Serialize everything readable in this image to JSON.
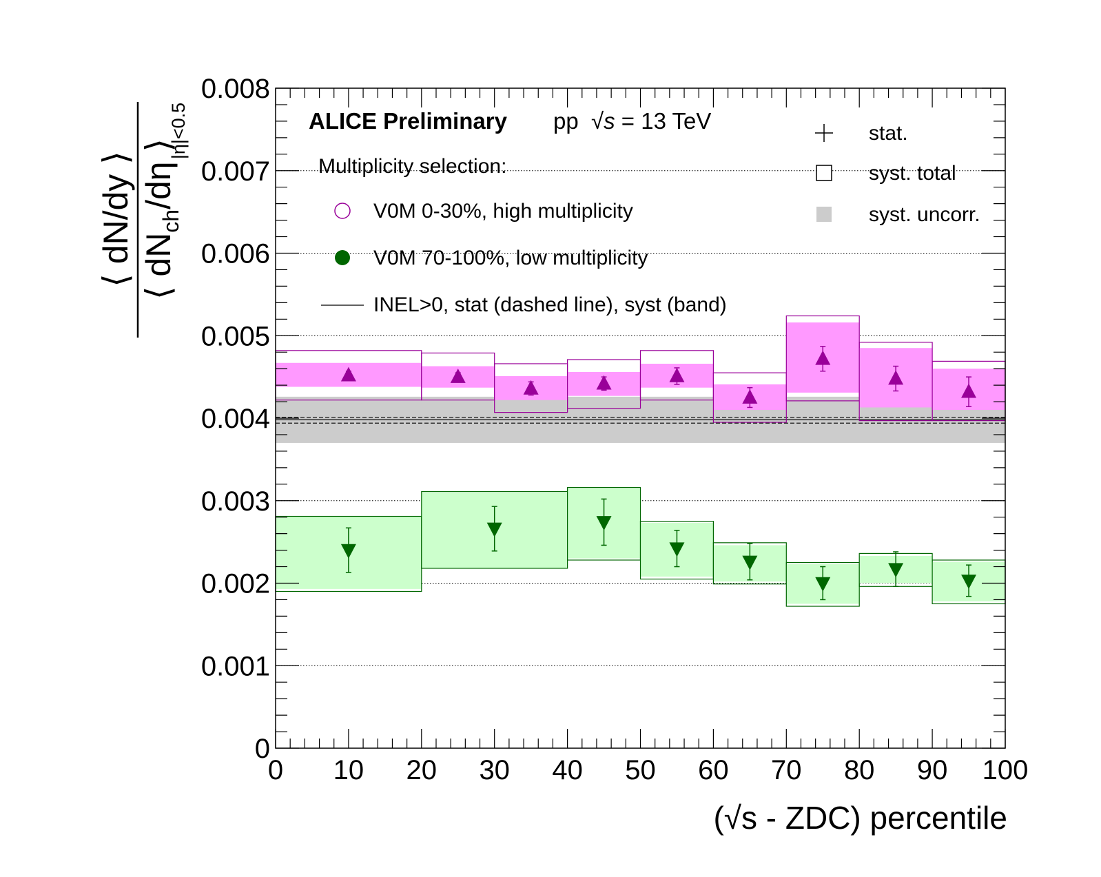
{
  "chart_data": {
    "type": "scatter",
    "xlabel": "(√s - ZDC) percentile",
    "xlim": [
      0,
      100
    ],
    "ylim": [
      0,
      0.008
    ],
    "x_ticks": [
      "0",
      "10",
      "20",
      "30",
      "40",
      "50",
      "60",
      "70",
      "80",
      "90",
      "100"
    ],
    "y_ticks": [
      "0",
      "0.001",
      "0.002",
      "0.003",
      "0.004",
      "0.005",
      "0.006",
      "0.007",
      "0.008"
    ],
    "ylabel": {
      "numerator": "⟨ dN/dy ⟩",
      "denominator_main": "⟨ dN",
      "denominator_sub": "ch",
      "denominator_tail": "/dη ⟩",
      "subscript": "|η|<0.5"
    },
    "grid": "horizontal dotted lines",
    "header": {
      "experiment": "ALICE Preliminary",
      "system": "pp",
      "energy_prefix": "√",
      "energy_s": "s",
      "energy_suffix": " = 13 TeV"
    },
    "legend": {
      "title": "Multiplicity selection:",
      "entries": [
        {
          "label": "V0M 0-30%, high multiplicity",
          "marker": "open-circle",
          "color": "#990099"
        },
        {
          "label": "V0M 70-100%, low multiplicity",
          "marker": "filled-circle",
          "color": "#006600"
        },
        {
          "label": "INEL>0, stat (dashed line), syst (band)",
          "marker": "line",
          "color": "#000000"
        }
      ],
      "error_legend": [
        {
          "label": "stat.",
          "marker": "cross"
        },
        {
          "label": "syst. total",
          "marker": "open-box"
        },
        {
          "label": "syst. uncorr.",
          "marker": "filled-box"
        }
      ]
    },
    "reference_inel": {
      "value": 0.00398,
      "stat_low": 0.00394,
      "stat_high": 0.00401,
      "syst_low": 0.0037,
      "syst_high": 0.00426,
      "band_color": "#cccccc"
    },
    "series": [
      {
        "name": "V0M 0-30%, high multiplicity",
        "marker": "triangle-up",
        "color": "#990099",
        "syst_fill": "#ff99ff",
        "x_low": [
          0,
          20,
          30,
          40,
          50,
          60,
          70,
          80,
          90
        ],
        "x_high": [
          20,
          30,
          40,
          50,
          60,
          70,
          80,
          90,
          100
        ],
        "x": [
          10,
          25,
          35,
          45,
          55,
          65,
          75,
          85,
          95
        ],
        "y": [
          0.00452,
          0.0045,
          0.00436,
          0.00442,
          0.00451,
          0.00425,
          0.00472,
          0.00448,
          0.00432
        ],
        "stat_err": [
          5e-05,
          5e-05,
          8e-05,
          8e-05,
          0.0001,
          0.00012,
          0.00015,
          0.00015,
          0.00018
        ],
        "syst_total_low": [
          0.00422,
          0.00422,
          0.00407,
          0.00412,
          0.00422,
          0.00395,
          0.00421,
          0.00397,
          0.00397
        ],
        "syst_total_high": [
          0.00482,
          0.00479,
          0.00466,
          0.00471,
          0.00482,
          0.00455,
          0.00524,
          0.00492,
          0.00469
        ],
        "syst_uncorr_low": [
          0.00438,
          0.00437,
          0.00422,
          0.00427,
          0.00437,
          0.0041,
          0.00431,
          0.00413,
          0.0041
        ],
        "syst_uncorr_high": [
          0.00467,
          0.00463,
          0.00451,
          0.00456,
          0.00466,
          0.00441,
          0.00516,
          0.00485,
          0.0046
        ]
      },
      {
        "name": "V0M 70-100%, low multiplicity",
        "marker": "triangle-down",
        "color": "#006600",
        "syst_fill": "#ccffcc",
        "x_low": [
          0,
          20,
          40,
          50,
          60,
          70,
          80,
          90
        ],
        "x_high": [
          20,
          40,
          50,
          60,
          70,
          80,
          90,
          100
        ],
        "x": [
          10,
          30,
          45,
          55,
          65,
          75,
          85,
          95
        ],
        "y": [
          0.0024,
          0.00266,
          0.00274,
          0.00242,
          0.00226,
          0.002,
          0.00217,
          0.00203
        ],
        "stat_err": [
          0.00027,
          0.00027,
          0.00028,
          0.00022,
          0.00022,
          0.0002,
          0.00021,
          0.00019
        ],
        "syst_total_low": [
          0.0019,
          0.00218,
          0.00228,
          0.00205,
          0.00199,
          0.00172,
          0.00196,
          0.00175
        ],
        "syst_total_high": [
          0.00281,
          0.00311,
          0.00316,
          0.00275,
          0.00249,
          0.00225,
          0.00236,
          0.00228
        ],
        "syst_uncorr_low": [
          0.00193,
          0.00218,
          0.0023,
          0.00208,
          0.00202,
          0.00175,
          0.002,
          0.00178
        ],
        "syst_uncorr_high": [
          0.00281,
          0.0031,
          0.00315,
          0.00273,
          0.00246,
          0.00223,
          0.00233,
          0.00226
        ]
      }
    ]
  }
}
